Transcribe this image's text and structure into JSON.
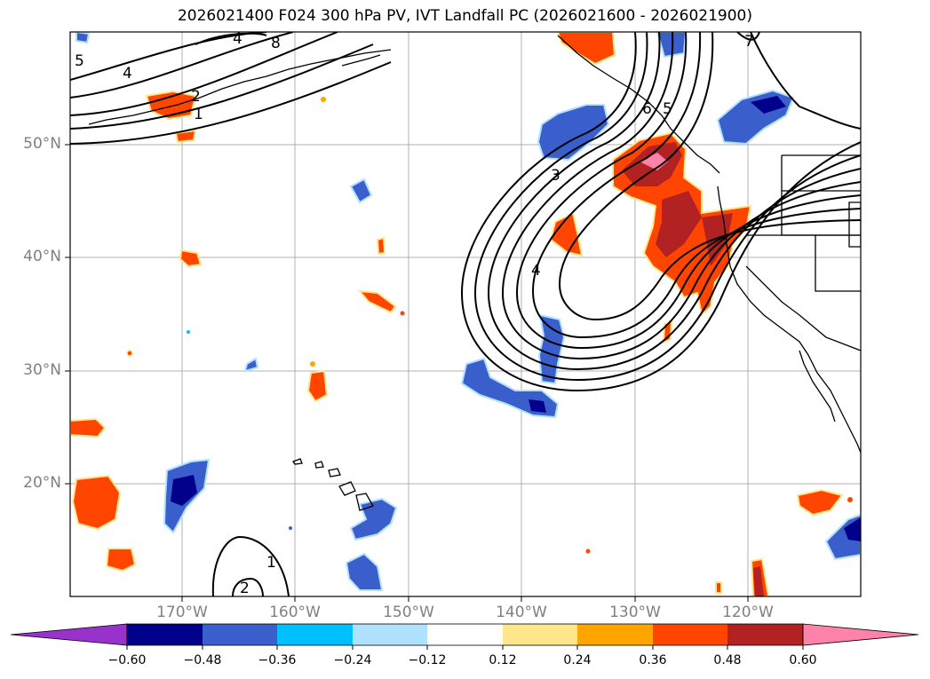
{
  "title": "2026021400 F024 300 hPa PV, IVT Landfall PC (2026021600 - 2026021900)",
  "map": {
    "lat_labels": [
      "50°N",
      "40°N",
      "30°N",
      "20°N"
    ],
    "lon_labels": [
      "170°W",
      "160°W",
      "150°W",
      "140°W",
      "130°W",
      "120°W"
    ],
    "contour_labels": [
      "5",
      "4",
      "4",
      "8",
      "2",
      "1",
      "7",
      "6",
      "5",
      "3",
      "4",
      "1",
      "2"
    ],
    "label_color": "#808080"
  },
  "colorbar": {
    "ticks": [
      "−0.60",
      "−0.48",
      "−0.36",
      "−0.24",
      "−0.12",
      "0.12",
      "0.24",
      "0.36",
      "0.48",
      "0.60"
    ],
    "colors": [
      "#9932CC",
      "#00008B",
      "#3A5FCD",
      "#00BFFF",
      "#B0E2FF",
      "#FFFFFF",
      "#FFE68C",
      "#FFA500",
      "#FF4500",
      "#B22222",
      "#FF82AB"
    ]
  }
}
